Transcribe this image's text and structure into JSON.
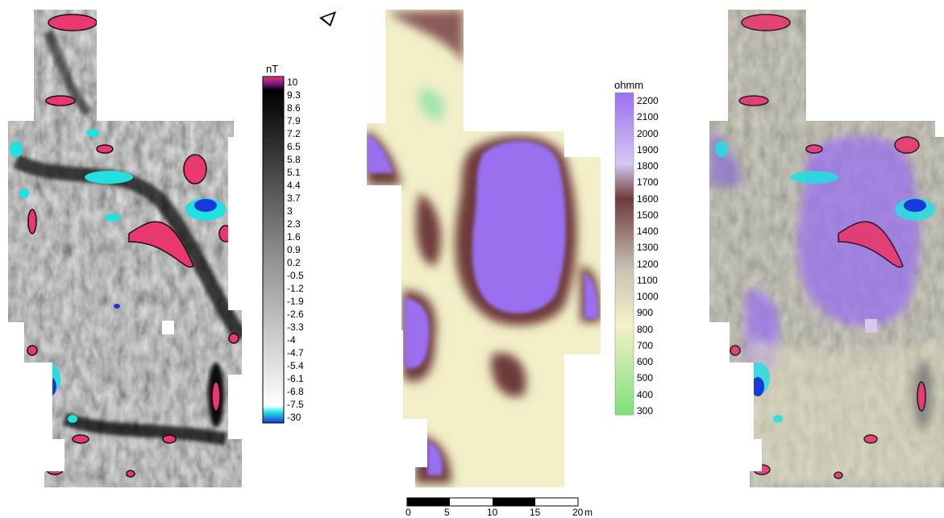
{
  "magnetometry": {
    "unit": "nT",
    "labels": [
      "10",
      "9.3",
      "8.6",
      "7.9",
      "7.2",
      "6.5",
      "5.8",
      "5.1",
      "4.4",
      "3.7",
      "3",
      "2.3",
      "1.6",
      "0.9",
      "0.2",
      "-0.5",
      "-1.2",
      "-1.9",
      "-2.6",
      "-3.3",
      "-4",
      "-4.7",
      "-5.4",
      "-6.1",
      "-6.8",
      "-7.5",
      "-30"
    ]
  },
  "resistivity": {
    "unit": "ohmm",
    "labels": [
      "2200",
      "2100",
      "2000",
      "1900",
      "1800",
      "1700",
      "1600",
      "1500",
      "1400",
      "1300",
      "1200",
      "1100",
      "1000",
      "900",
      "800",
      "700",
      "600",
      "500",
      "400",
      "300"
    ]
  },
  "scalebar": {
    "ticks": [
      "0",
      "5",
      "10",
      "15",
      "20"
    ],
    "unit": "m"
  },
  "north_arrow": "north-arrow-icon",
  "colors": {
    "mag_high": "#e8386e",
    "mag_low": "#22e0e0",
    "mag_low2": "#1838d8",
    "res_high": "#9a6ff0",
    "res_mid": "#6e3a3a",
    "res_low": "#f2efc8",
    "res_min": "#7ee07a"
  }
}
